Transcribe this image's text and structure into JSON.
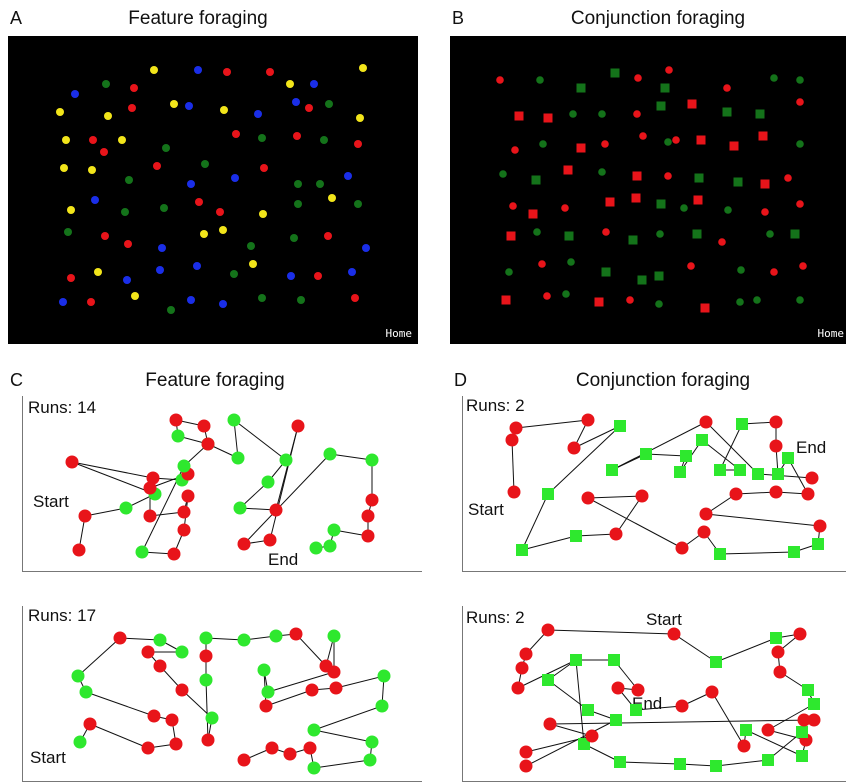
{
  "panels": {
    "A": {
      "letter": "A",
      "title": "Feature foraging",
      "home": "Home"
    },
    "B": {
      "letter": "B",
      "title": "Conjunction foraging",
      "home": "Home"
    },
    "C": {
      "letter": "C",
      "title": "Feature foraging",
      "top": {
        "runs": "Runs: 14",
        "start": "Start",
        "end": "End"
      },
      "bottom": {
        "runs": "Runs: 17",
        "start": "Start"
      }
    },
    "D": {
      "letter": "D",
      "title": "Conjunction foraging",
      "top": {
        "runs": "Runs: 2",
        "start": "Start",
        "end": "End"
      },
      "bottom": {
        "runs": "Runs: 2",
        "start": "Start",
        "end": "End"
      }
    }
  },
  "colors": {
    "red": "#e8141a",
    "green": "#14731a",
    "blue": "#1a2ee8",
    "yellow": "#f2e51a",
    "light_red": "#e8141a",
    "light_green": "#2ee82e"
  }
}
